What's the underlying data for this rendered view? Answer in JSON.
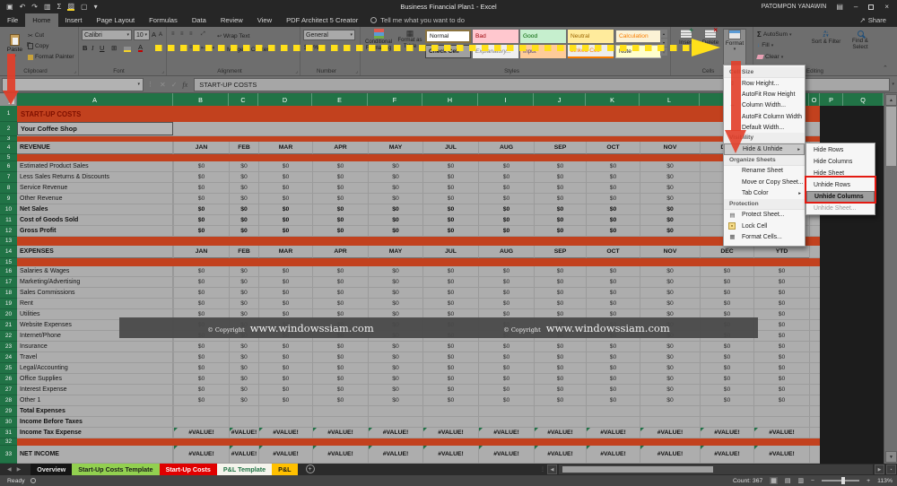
{
  "colors": {
    "excel_green": "#217346",
    "band_red": "#C2411E",
    "annotation_red": "#E2402B",
    "annotation_yellow": "#FFE01A",
    "grid_gray": "#ADADAD",
    "void_dark": "#1C1C1C"
  },
  "title_bar": {
    "title": "Business Financial Plan1 - Excel",
    "user": "PATOMPON YANAWIN"
  },
  "qat_icons": [
    "save-icon",
    "undo-icon",
    "redo-icon",
    "clipboard-icon",
    "autosum-icon",
    "fill-color-icon",
    "new-document-icon",
    "customize-qat-icon"
  ],
  "window_icons": [
    "ribbon-display-options-icon",
    "minimize-icon",
    "restore-icon",
    "close-icon"
  ],
  "ribbon_tabs": [
    "File",
    "Home",
    "Insert",
    "Page Layout",
    "Formulas",
    "Data",
    "Review",
    "View",
    "PDF Architect 5 Creator"
  ],
  "tell_me": "Tell me what you want to do",
  "share_label": "Share",
  "ribbon": {
    "clipboard": {
      "label": "Clipboard",
      "paste": "Paste",
      "cut": "Cut",
      "copy": "Copy",
      "format_painter": "Format Painter"
    },
    "font": {
      "label": "Font",
      "name": "Calibri",
      "size": "10",
      "bold": "B",
      "italic": "I",
      "underline": "U"
    },
    "alignment": {
      "label": "Alignment",
      "wrap_text": "Wrap Text",
      "merge_center": "Merge & Center"
    },
    "number": {
      "label": "Number",
      "format": "General",
      "currency": "$",
      "percent": "%",
      "comma": ","
    },
    "styles": {
      "label": "Styles",
      "conditional_formatting": "Conditional Formatting",
      "format_as_table": "Format as Table",
      "chips": [
        "Normal",
        "Bad",
        "Good",
        "Neutral",
        "Calculation",
        "Check Cell",
        "Explanatory...",
        "Input",
        "Linked Cell",
        "Note"
      ]
    },
    "cells": {
      "label": "Cells",
      "insert": "Insert",
      "delete": "Delete",
      "format": "Format"
    },
    "editing": {
      "label": "Editing",
      "autosum": "AutoSum",
      "fill": "Fill",
      "clear": "Clear",
      "sort_filter": "Sort & Filter",
      "find_select": "Find & Select"
    }
  },
  "formula_bar": {
    "fx": "fx",
    "value": "START-UP COSTS"
  },
  "sheet": {
    "columns": [
      "A",
      "B",
      "C",
      "D",
      "E",
      "F",
      "H",
      "I",
      "J",
      "K",
      "L",
      "M",
      "N",
      "O",
      "P",
      "Q"
    ],
    "month_headers": [
      "JAN",
      "FEB",
      "MAR",
      "APR",
      "MAY",
      "JUL",
      "AUG",
      "SEP",
      "OCT",
      "NOV",
      "DEC",
      "YTD"
    ],
    "rows": [
      {
        "n": 1,
        "t": "title",
        "label": "START-UP COSTS"
      },
      {
        "n": 2,
        "t": "sub",
        "label": "Your Coffee Shop"
      },
      {
        "n": 3,
        "t": "band"
      },
      {
        "n": 4,
        "t": "sec",
        "label": "REVENUE"
      },
      {
        "n": 5,
        "t": "band"
      },
      {
        "n": 6,
        "t": "data",
        "label": "Estimated Product Sales",
        "v": "$0"
      },
      {
        "n": 7,
        "t": "data",
        "label": "Less Sales Returns & Discounts",
        "v": "$0"
      },
      {
        "n": 8,
        "t": "data",
        "label": "Service Revenue",
        "v": "$0"
      },
      {
        "n": 9,
        "t": "data",
        "label": "Other Revenue",
        "v": "$0"
      },
      {
        "n": 10,
        "t": "data",
        "label": "Net Sales",
        "v": "$0",
        "b": true
      },
      {
        "n": 11,
        "t": "data",
        "label": "Cost of Goods Sold",
        "v": "$0",
        "b": true
      },
      {
        "n": 12,
        "t": "data",
        "label": "Gross Profit",
        "v": "$0",
        "b": true
      },
      {
        "n": 13,
        "t": "band"
      },
      {
        "n": 14,
        "t": "sec",
        "label": "EXPENSES"
      },
      {
        "n": 15,
        "t": "band"
      },
      {
        "n": 16,
        "t": "data",
        "label": "Salaries & Wages",
        "v": "$0"
      },
      {
        "n": 17,
        "t": "data",
        "label": "Marketing/Advertising",
        "v": "$0"
      },
      {
        "n": 18,
        "t": "data",
        "label": "Sales Commissions",
        "v": "$0"
      },
      {
        "n": 19,
        "t": "data",
        "label": "Rent",
        "v": "$0"
      },
      {
        "n": 20,
        "t": "data",
        "label": "Utilities",
        "v": "$0"
      },
      {
        "n": 21,
        "t": "data",
        "label": "Website Expenses",
        "v": "$0"
      },
      {
        "n": 22,
        "t": "data",
        "label": "Internet/Phone",
        "v": "$0"
      },
      {
        "n": 23,
        "t": "data",
        "label": "Insurance",
        "v": "$0"
      },
      {
        "n": 24,
        "t": "data",
        "label": "Travel",
        "v": "$0"
      },
      {
        "n": 25,
        "t": "data",
        "label": "Legal/Accounting",
        "v": "$0"
      },
      {
        "n": 26,
        "t": "data",
        "label": "Office Supplies",
        "v": "$0"
      },
      {
        "n": 27,
        "t": "data",
        "label": "Interest Expense",
        "v": "$0"
      },
      {
        "n": 28,
        "t": "data",
        "label": "Other 1",
        "v": "$0"
      },
      {
        "n": 29,
        "t": "data",
        "label": "Total Expenses",
        "v": "",
        "b": true
      },
      {
        "n": 30,
        "t": "data",
        "label": "Income Before Taxes",
        "v": "",
        "b": true
      },
      {
        "n": 31,
        "t": "data",
        "label": "Income Tax Expense",
        "v": "#VALUE!",
        "b": true,
        "e": true
      },
      {
        "n": 32,
        "t": "band"
      },
      {
        "n": 33,
        "t": "data",
        "label": "NET INCOME",
        "v": "#VALUE!",
        "b": true,
        "e": true
      }
    ]
  },
  "watermark": {
    "prefix": "© Copyright",
    "site": "www.windowssiam.com"
  },
  "format_menu": {
    "items": [
      {
        "t": "header",
        "label": "Cell Size"
      },
      {
        "t": "item",
        "label": "Row Height...",
        "icon": "row-height-icon"
      },
      {
        "t": "item",
        "label": "AutoFit Row Height"
      },
      {
        "t": "item",
        "label": "Column Width...",
        "icon": "column-width-icon"
      },
      {
        "t": "item",
        "label": "AutoFit Column Width"
      },
      {
        "t": "item",
        "label": "Default Width..."
      },
      {
        "t": "header",
        "label": "Visibility"
      },
      {
        "t": "item",
        "label": "Hide & Unhide",
        "hl": true,
        "arrow": true
      },
      {
        "t": "header",
        "label": "Organize Sheets"
      },
      {
        "t": "item",
        "label": "Rename Sheet"
      },
      {
        "t": "item",
        "label": "Move or Copy Sheet..."
      },
      {
        "t": "item",
        "label": "Tab Color",
        "arrow": true
      },
      {
        "t": "header",
        "label": "Protection"
      },
      {
        "t": "item",
        "label": "Protect Sheet...",
        "icon": "protect-sheet-icon"
      },
      {
        "t": "item",
        "label": "Lock Cell",
        "icon": "lock-cell-icon"
      },
      {
        "t": "item",
        "label": "Format Cells...",
        "icon": "format-cells-icon"
      }
    ]
  },
  "unhide_submenu": {
    "items": [
      {
        "label": "Hide Rows"
      },
      {
        "label": "Hide Columns"
      },
      {
        "label": "Hide Sheet"
      },
      {
        "label": "Unhide Rows"
      },
      {
        "label": "Unhide Columns",
        "hl": true
      },
      {
        "label": "Unhide Sheet...",
        "dis": true
      }
    ]
  },
  "sheet_tabs": [
    {
      "label": "Overview",
      "bg": "#151515",
      "color": "#E8E8E8"
    },
    {
      "label": "Start-Up Costs Template",
      "bg": "#92D050",
      "color": "#1A1A1A"
    },
    {
      "label": "Start-Up Costs",
      "bg": "#E00000",
      "color": "#FFFFFF"
    },
    {
      "label": "P&L Template",
      "bg": "#F5F4EC",
      "color": "#1F7244",
      "active": true
    },
    {
      "label": "P&L",
      "bg": "#FFC000",
      "color": "#1A1A1A"
    }
  ],
  "status_bar": {
    "ready": "Ready",
    "count": "Count: 367",
    "zoom_level": "113%"
  }
}
